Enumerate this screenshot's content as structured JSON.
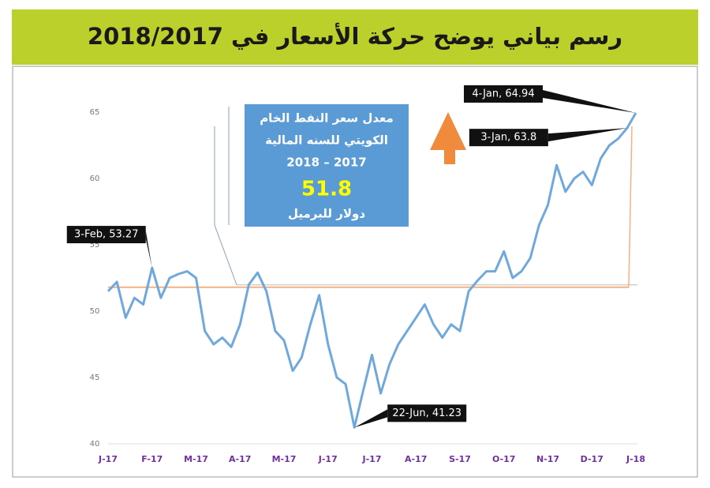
{
  "chart_data": {
    "type": "line",
    "title": "رسم بياني يوضح حركة الأسعار في 2018/2017",
    "categories": [
      "J-17",
      null,
      null,
      null,
      null,
      "F-17",
      null,
      null,
      null,
      null,
      "M-17",
      null,
      null,
      null,
      null,
      "A-17",
      null,
      null,
      null,
      null,
      "M-17",
      null,
      null,
      null,
      null,
      "J-17",
      null,
      null,
      null,
      null,
      "J-17",
      null,
      null,
      null,
      null,
      "A-17",
      null,
      null,
      null,
      null,
      "S-17",
      null,
      null,
      null,
      null,
      "O-17",
      null,
      null,
      null,
      null,
      "N-17",
      null,
      null,
      null,
      null,
      "D-17",
      null,
      null,
      null,
      null,
      "J-18"
    ],
    "series": [
      {
        "color": "#6fa8dc",
        "values": [
          51.5,
          52.2,
          49.5,
          51.0,
          50.5,
          53.27,
          51.0,
          52.5,
          52.8,
          53.0,
          52.5,
          48.5,
          47.5,
          48.0,
          47.3,
          49.0,
          52.0,
          52.9,
          51.5,
          48.5,
          47.8,
          45.5,
          46.5,
          49.0,
          51.2,
          47.5,
          45.0,
          44.5,
          41.23,
          44.0,
          46.7,
          43.8,
          46.0,
          47.5,
          48.5,
          49.5,
          50.5,
          49.0,
          48.0,
          49.0,
          48.5,
          51.5,
          52.3,
          53.0,
          53.0,
          54.5,
          52.5,
          53.0,
          54.0,
          56.5,
          58.0,
          61.0,
          59.0,
          60.0,
          60.5,
          59.5,
          61.5,
          62.5,
          63.0,
          63.8,
          64.94
        ],
        "value_labels": [
          null,
          null,
          null,
          null,
          null,
          "3-Feb, 53.27",
          null,
          null,
          null,
          null,
          null,
          null,
          null,
          null,
          null,
          null,
          null,
          null,
          null,
          null,
          null,
          null,
          null,
          null,
          null,
          null,
          null,
          null,
          "22-Jun, 41.23",
          null,
          null,
          null,
          null,
          null,
          null,
          null,
          null,
          null,
          null,
          null,
          null,
          null,
          null,
          null,
          null,
          null,
          null,
          null,
          null,
          null,
          null,
          null,
          null,
          null,
          null,
          null,
          null,
          null,
          null,
          "3-Jan, 63.8",
          "4-Jan, 64.94"
        ]
      }
    ],
    "ylim": [
      40,
      65
    ],
    "yticks": [
      40,
      45,
      50,
      55,
      60,
      65
    ],
    "grid": false,
    "average": {
      "value": 51.8,
      "color": "#f4b183",
      "caption": [
        "معدل سعر النفط الخام",
        "الكويتي للسنه المالية",
        "2018 – 2017"
      ],
      "unit": "دولار للبرميل"
    }
  }
}
